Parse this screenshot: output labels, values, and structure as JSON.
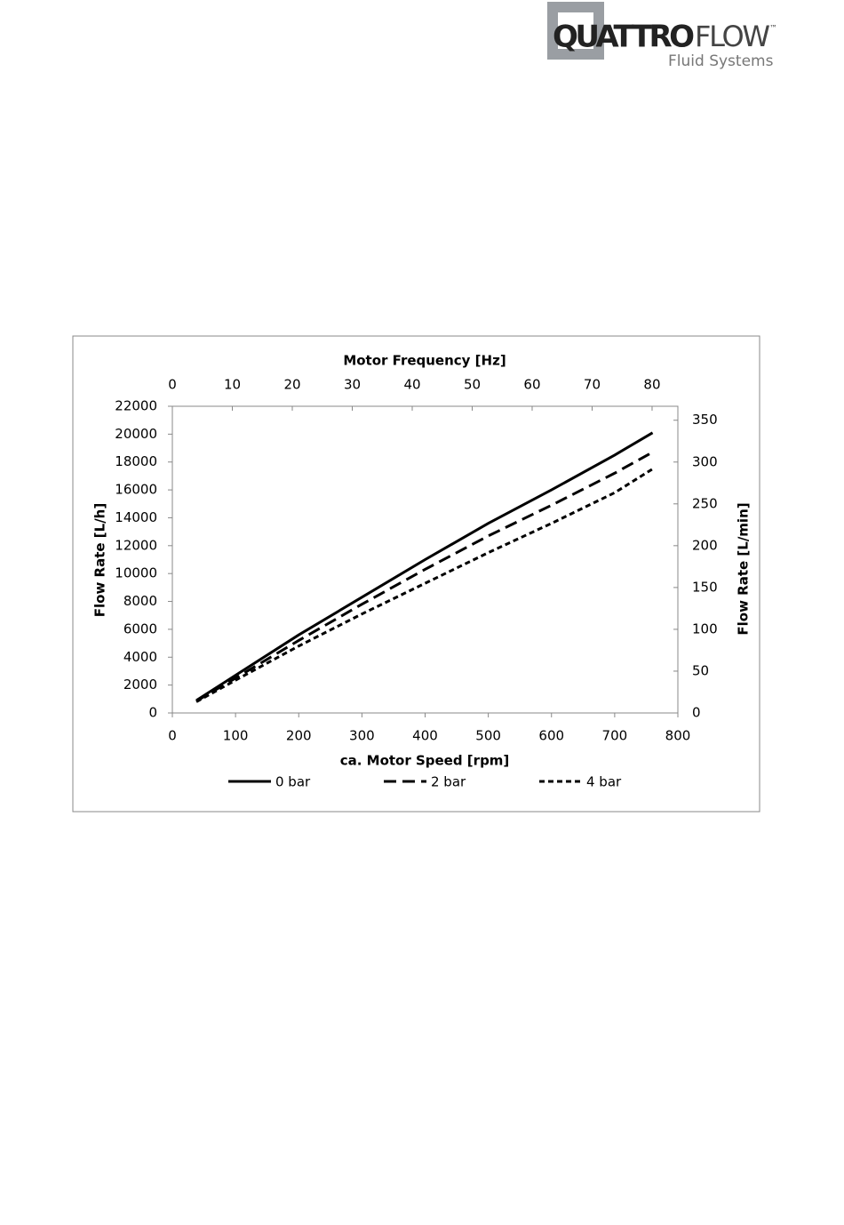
{
  "logo": {
    "brand_bold": "QUATTRO",
    "brand_light": "FLOW",
    "tm": "™",
    "tagline": "Fluid Systems"
  },
  "chart_data": {
    "type": "line",
    "x_label": "ca. Motor Speed [rpm]",
    "x2_label": "Motor Frequency [Hz]",
    "y_label": "Flow Rate [L/h]",
    "y2_label": "Flow Rate [L/min]",
    "x": [
      38,
      100,
      200,
      300,
      400,
      500,
      600,
      700,
      760
    ],
    "series": [
      {
        "name": "0 bar",
        "color": "#000000",
        "style": "solid",
        "values": [
          900,
          2700,
          5600,
          8300,
          11000,
          13600,
          16000,
          18500,
          20100
        ]
      },
      {
        "name": "2 bar",
        "color": "#000000",
        "style": "dashed",
        "values": [
          850,
          2500,
          5200,
          7800,
          10300,
          12700,
          14900,
          17200,
          18700
        ]
      },
      {
        "name": "4 bar",
        "color": "#000000",
        "style": "dotted",
        "values": [
          800,
          2350,
          4800,
          7100,
          9300,
          11500,
          13600,
          15800,
          17500
        ]
      }
    ],
    "xlim": [
      0,
      800
    ],
    "xticks": [
      0,
      100,
      200,
      300,
      400,
      500,
      600,
      700,
      800
    ],
    "x2lim": [
      0,
      84.3
    ],
    "x2ticks": [
      0,
      10,
      20,
      30,
      40,
      50,
      60,
      70,
      80
    ],
    "ylim": [
      0,
      22000
    ],
    "yticks": [
      0,
      2000,
      4000,
      6000,
      8000,
      10000,
      12000,
      14000,
      16000,
      18000,
      20000,
      22000
    ],
    "y2lim": [
      0,
      366.7
    ],
    "y2ticks": [
      0,
      50,
      100,
      150,
      200,
      250,
      300,
      350
    ],
    "grid": false
  }
}
